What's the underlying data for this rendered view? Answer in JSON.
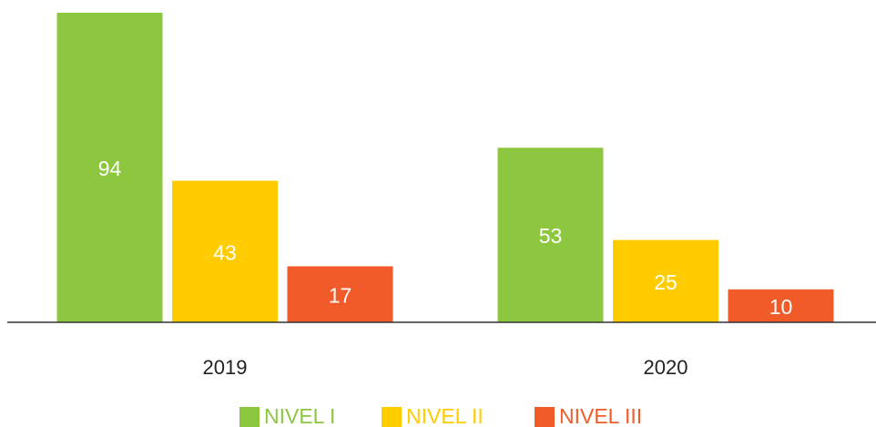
{
  "chart_data": {
    "type": "bar",
    "categories": [
      "2019",
      "2020"
    ],
    "series": [
      {
        "name": "NIVEL I",
        "color": "#8dc63f",
        "values": [
          94,
          53
        ]
      },
      {
        "name": "NIVEL II",
        "color": "#ffcc00",
        "values": [
          43,
          25
        ]
      },
      {
        "name": "NIVEL III",
        "color": "#f15a29",
        "values": [
          17,
          10
        ]
      }
    ],
    "legend": "bottom"
  }
}
